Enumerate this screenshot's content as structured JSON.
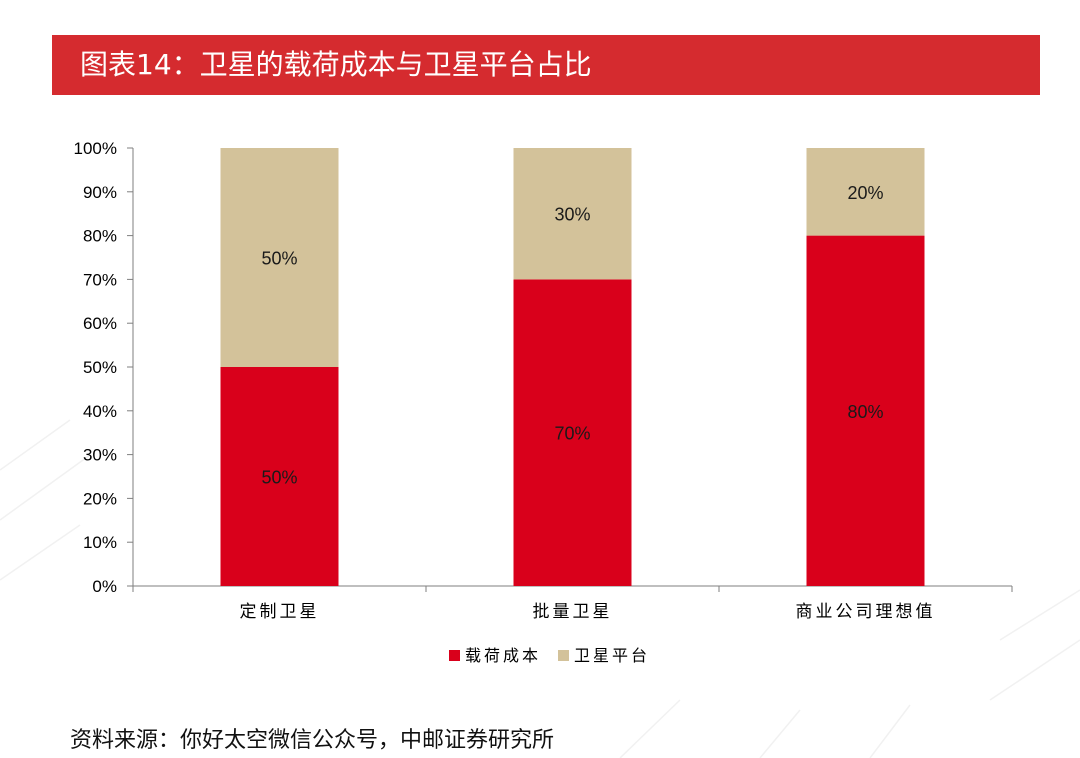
{
  "header": {
    "title": "图表14：卫星的载荷成本与卫星平台占比"
  },
  "source": "资料来源：你好太空微信公众号，中邮证券研究所",
  "colors": {
    "title_bar": "#d52b2f",
    "payload": "#d9001b",
    "platform": "#d3c29a"
  },
  "chart_data": {
    "type": "bar",
    "stacked": true,
    "categories": [
      "定制卫星",
      "批量卫星",
      "商业公司理想值"
    ],
    "series": [
      {
        "name": "载荷成本",
        "values": [
          50,
          70,
          80
        ],
        "labels": [
          "50%",
          "70%",
          "80%"
        ]
      },
      {
        "name": "卫星平台",
        "values": [
          50,
          30,
          20
        ],
        "labels": [
          "50%",
          "30%",
          "20%"
        ]
      }
    ],
    "ylim": [
      0,
      100
    ],
    "yticks": [
      "0%",
      "10%",
      "20%",
      "30%",
      "40%",
      "50%",
      "60%",
      "70%",
      "80%",
      "90%",
      "100%"
    ],
    "grid": false,
    "legend": "bottom"
  }
}
